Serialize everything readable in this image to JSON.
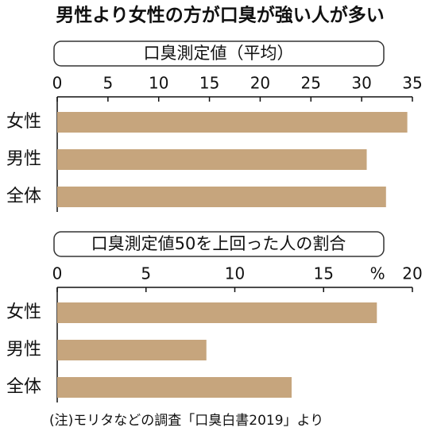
{
  "title": "男性より女性の方が口臭が強い人が多い",
  "note": "(注)モリタなどの調査「口臭白書2019」より",
  "chart_data": [
    {
      "type": "bar",
      "orientation": "horizontal",
      "subtitle": "口臭測定値（平均）",
      "categories": [
        "女性",
        "男性",
        "全体"
      ],
      "values": [
        34.5,
        30.5,
        32.4
      ],
      "color": "#c6a57d",
      "xlim": [
        0,
        35
      ],
      "xticks": [
        0,
        5,
        10,
        15,
        20,
        25,
        30,
        35
      ]
    },
    {
      "type": "bar",
      "orientation": "horizontal",
      "subtitle": "口臭測定値50を上回った人の割合",
      "unit": "%",
      "categories": [
        "女性",
        "男性",
        "全体"
      ],
      "values": [
        18.0,
        8.4,
        13.2
      ],
      "color": "#c6a57d",
      "xlim": [
        0,
        20
      ],
      "xticks": [
        0,
        5,
        10,
        15,
        20
      ]
    }
  ]
}
